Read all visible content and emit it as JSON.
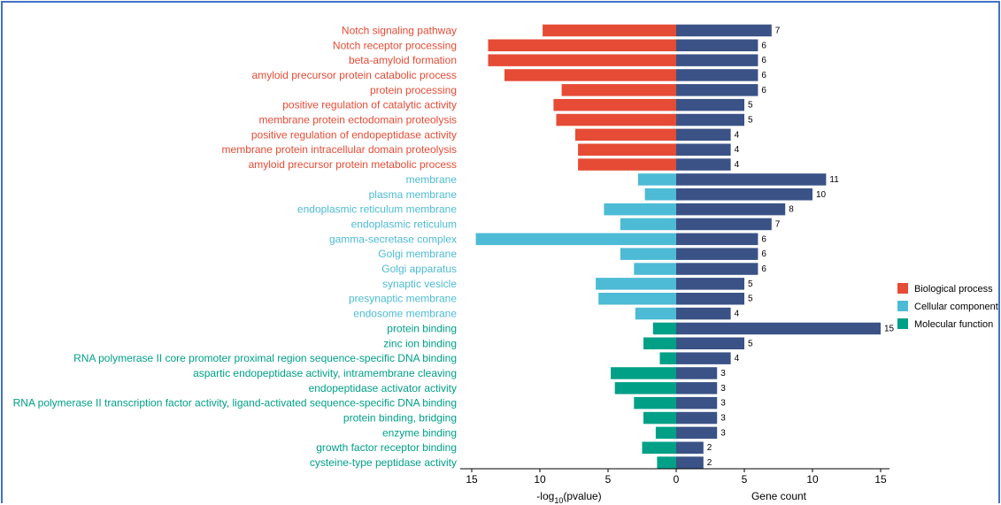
{
  "chart_data": {
    "type": "bar",
    "subtype": "mirrored horizontal bar (butterfly)",
    "left_panel": {
      "xlabel_main": "-log",
      "xlabel_sub": "10",
      "xlabel_tail": "(pvalue)",
      "ticks": [
        15,
        10,
        5,
        0
      ],
      "xlim": [
        0,
        15.5
      ]
    },
    "right_panel": {
      "xlabel": "Gene count",
      "ticks": [
        0,
        5,
        10,
        15
      ],
      "xlim": [
        0,
        15.5
      ],
      "bar_color": "#3a5286"
    },
    "groups": [
      {
        "name": "Biological process",
        "color": "#e64b35"
      },
      {
        "name": "Cellular component",
        "color": "#4dbbd5"
      },
      {
        "name": "Molecular function",
        "color": "#00a087"
      }
    ],
    "rows": [
      {
        "term": "Notch signaling pathway",
        "group": 0,
        "neglog10p": 9.8,
        "count": 7
      },
      {
        "term": "Notch receptor processing",
        "group": 0,
        "neglog10p": 13.8,
        "count": 6
      },
      {
        "term": "beta-amyloid formation",
        "group": 0,
        "neglog10p": 13.8,
        "count": 6
      },
      {
        "term": "amyloid precursor protein catabolic process",
        "group": 0,
        "neglog10p": 12.6,
        "count": 6
      },
      {
        "term": "protein processing",
        "group": 0,
        "neglog10p": 8.4,
        "count": 6
      },
      {
        "term": "positive regulation of catalytic activity",
        "group": 0,
        "neglog10p": 9.0,
        "count": 5
      },
      {
        "term": "membrane protein ectodomain proteolysis",
        "group": 0,
        "neglog10p": 8.8,
        "count": 5
      },
      {
        "term": "positive regulation of endopeptidase activity",
        "group": 0,
        "neglog10p": 7.4,
        "count": 4
      },
      {
        "term": "membrane protein intracellular domain proteolysis",
        "group": 0,
        "neglog10p": 7.2,
        "count": 4
      },
      {
        "term": "amyloid precursor protein metabolic process",
        "group": 0,
        "neglog10p": 7.2,
        "count": 4
      },
      {
        "term": "membrane",
        "group": 1,
        "neglog10p": 2.8,
        "count": 11
      },
      {
        "term": "plasma membrane",
        "group": 1,
        "neglog10p": 2.3,
        "count": 10
      },
      {
        "term": "endoplasmic reticulum membrane",
        "group": 1,
        "neglog10p": 5.3,
        "count": 8
      },
      {
        "term": "endoplasmic reticulum",
        "group": 1,
        "neglog10p": 4.1,
        "count": 7
      },
      {
        "term": "gamma-secretase complex",
        "group": 1,
        "neglog10p": 14.7,
        "count": 6
      },
      {
        "term": "Golgi membrane",
        "group": 1,
        "neglog10p": 4.1,
        "count": 6
      },
      {
        "term": "Golgi apparatus",
        "group": 1,
        "neglog10p": 3.1,
        "count": 6
      },
      {
        "term": "synaptic vesicle",
        "group": 1,
        "neglog10p": 5.9,
        "count": 5
      },
      {
        "term": "presynaptic membrane",
        "group": 1,
        "neglog10p": 5.7,
        "count": 5
      },
      {
        "term": "endosome membrane",
        "group": 1,
        "neglog10p": 3.0,
        "count": 4
      },
      {
        "term": "protein binding",
        "group": 2,
        "neglog10p": 1.7,
        "count": 15
      },
      {
        "term": "zinc ion binding",
        "group": 2,
        "neglog10p": 2.4,
        "count": 5
      },
      {
        "term": "RNA polymerase II core promoter proximal region sequence-specific DNA binding",
        "group": 2,
        "neglog10p": 1.2,
        "count": 4
      },
      {
        "term": "aspartic endopeptidase activity, intramembrane cleaving",
        "group": 2,
        "neglog10p": 4.8,
        "count": 3
      },
      {
        "term": "endopeptidase activator activity",
        "group": 2,
        "neglog10p": 4.5,
        "count": 3
      },
      {
        "term": "RNA polymerase II transcription factor activity, ligand-activated sequence-specific DNA binding",
        "group": 2,
        "neglog10p": 3.1,
        "count": 3
      },
      {
        "term": "protein binding, bridging",
        "group": 2,
        "neglog10p": 2.4,
        "count": 3
      },
      {
        "term": "enzyme binding",
        "group": 2,
        "neglog10p": 1.5,
        "count": 3
      },
      {
        "term": "growth factor receptor binding",
        "group": 2,
        "neglog10p": 2.5,
        "count": 2
      },
      {
        "term": "cysteine-type peptidase activity",
        "group": 2,
        "neglog10p": 1.4,
        "count": 2
      }
    ],
    "legend_position": "right"
  }
}
